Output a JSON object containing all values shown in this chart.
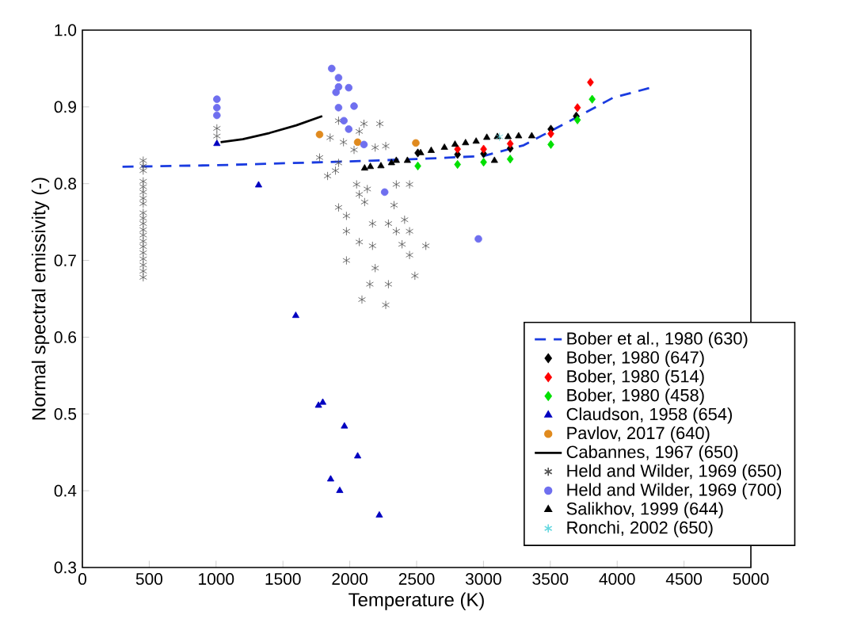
{
  "chart_data": {
    "type": "scatter",
    "xlabel": "Temperature (K)",
    "ylabel": "Normal spectral emissivity (-)",
    "xlim": [
      0,
      5000
    ],
    "ylim": [
      0.3,
      1.0
    ],
    "xticks": [
      0,
      500,
      1000,
      1500,
      2000,
      2500,
      3000,
      3500,
      4000,
      4500,
      5000
    ],
    "yticks": [
      0.3,
      0.4,
      0.5,
      0.6,
      0.7,
      0.8,
      0.9,
      {
        "value": 1.0,
        "label": "1.0"
      }
    ],
    "legend": "bottom right",
    "grid": false,
    "series": [
      {
        "name": "Bober et al., 1980 (630)",
        "type": "line",
        "line_style": "dashed",
        "color": "#1a3be0",
        "x": [
          300,
          1000,
          2000,
          2500,
          3000,
          3300,
          3650,
          3970,
          4250
        ],
        "values": [
          0.822,
          0.824,
          0.829,
          0.832,
          0.836,
          0.85,
          0.882,
          0.912,
          0.925
        ]
      },
      {
        "name": "Bober, 1980 (647)",
        "marker": "diamond",
        "color": "#000000",
        "x": [
          2509,
          2806,
          3001,
          3200,
          3504,
          3694
        ],
        "values": [
          0.84,
          0.838,
          0.839,
          0.846,
          0.871,
          0.888
        ]
      },
      {
        "name": "Bober, 1980 (514)",
        "marker": "diamond",
        "color": "#ff0000",
        "x": [
          2806,
          3001,
          3200,
          3504,
          3703,
          3800
        ],
        "values": [
          0.845,
          0.845,
          0.852,
          0.865,
          0.899,
          0.932
        ]
      },
      {
        "name": "Bober, 1980 (458)",
        "marker": "diamond",
        "color": "#00e000",
        "x": [
          2509,
          2806,
          3001,
          3200,
          3504,
          3703,
          3813
        ],
        "values": [
          0.823,
          0.825,
          0.828,
          0.832,
          0.851,
          0.883,
          0.91
        ]
      },
      {
        "name": "Claudson, 1958 (654)",
        "marker": "triangle",
        "color": "#0000c0",
        "x": [
          1006,
          1318,
          1596,
          1766,
          1798,
          1960,
          2059,
          1857,
          1925,
          2221
        ],
        "values": [
          0.852,
          0.798,
          0.628,
          0.511,
          0.515,
          0.484,
          0.445,
          0.415,
          0.4,
          0.368
        ]
      },
      {
        "name": "Pavlov, 2017 (640)",
        "marker": "circle",
        "color": "#e08a1e",
        "x": [
          1774,
          2059,
          2494
        ],
        "values": [
          0.864,
          0.854,
          0.853
        ]
      },
      {
        "name": "Cabannes, 1967 (650)",
        "type": "line",
        "line_style": "solid",
        "color": "#000000",
        "x": [
          1034,
          1200,
          1400,
          1600,
          1794
        ],
        "values": [
          0.854,
          0.858,
          0.866,
          0.876,
          0.888
        ]
      },
      {
        "name": "Held and Wilder, 1969 (650)",
        "marker": "cross",
        "color": "#505050",
        "x": [
          455,
          455,
          455,
          455,
          455,
          455,
          455,
          455,
          455,
          455,
          455,
          455,
          455,
          455,
          455,
          455,
          455,
          455,
          455,
          455,
          1006,
          1006,
          1916,
          2106,
          2225,
          1853,
          1953,
          2071,
          2032,
          2190,
          2269,
          1774,
          1916,
          1834,
          1893,
          2051,
          2131,
          2071,
          2348,
          2447,
          1916,
          1975,
          2170,
          2289,
          2348,
          2447,
          1975,
          2071,
          2170,
          2391,
          2569,
          2447,
          1975,
          2487,
          2190,
          2150,
          2289,
          2091,
          2269,
          2331,
          2410,
          2111
        ],
        "values": [
          0.83,
          0.823,
          0.817,
          0.803,
          0.796,
          0.789,
          0.781,
          0.774,
          0.762,
          0.755,
          0.748,
          0.74,
          0.733,
          0.725,
          0.718,
          0.71,
          0.702,
          0.694,
          0.686,
          0.678,
          0.872,
          0.862,
          0.882,
          0.878,
          0.878,
          0.86,
          0.854,
          0.868,
          0.844,
          0.847,
          0.849,
          0.834,
          0.827,
          0.81,
          0.817,
          0.799,
          0.793,
          0.786,
          0.799,
          0.799,
          0.769,
          0.758,
          0.748,
          0.748,
          0.738,
          0.738,
          0.738,
          0.724,
          0.719,
          0.721,
          0.719,
          0.707,
          0.7,
          0.68,
          0.69,
          0.669,
          0.669,
          0.649,
          0.642,
          0.772,
          0.753,
          0.776
        ]
      },
      {
        "name": "Held and Wilder, 1969 (700)",
        "marker": "circle",
        "color": "#6f6fef",
        "x": [
          1006,
          1006,
          1006,
          1865,
          1916,
          1916,
          1992,
          1897,
          1916,
          2032,
          1956,
          1992,
          2106,
          2261,
          2962
        ],
        "values": [
          0.91,
          0.899,
          0.889,
          0.95,
          0.938,
          0.926,
          0.925,
          0.919,
          0.899,
          0.901,
          0.882,
          0.871,
          0.851,
          0.789,
          0.728
        ]
      },
      {
        "name": "Salikhov, 1999 (644)",
        "marker": "triangle",
        "color": "#000000",
        "x": [
          2111,
          2154,
          2233,
          2312,
          2348,
          2431,
          2530,
          2609,
          2708,
          2787,
          2866,
          2945,
          3025,
          3104,
          3184,
          3263,
          3361,
          3082
        ],
        "values": [
          0.82,
          0.822,
          0.823,
          0.827,
          0.83,
          0.83,
          0.84,
          0.843,
          0.847,
          0.851,
          0.853,
          0.855,
          0.86,
          0.861,
          0.861,
          0.862,
          0.862,
          0.83
        ]
      },
      {
        "name": "Ronchi, 2002 (650)",
        "marker": "cross",
        "color": "#66d8e0",
        "x": [
          3120
        ],
        "values": [
          0.861
        ]
      }
    ]
  }
}
